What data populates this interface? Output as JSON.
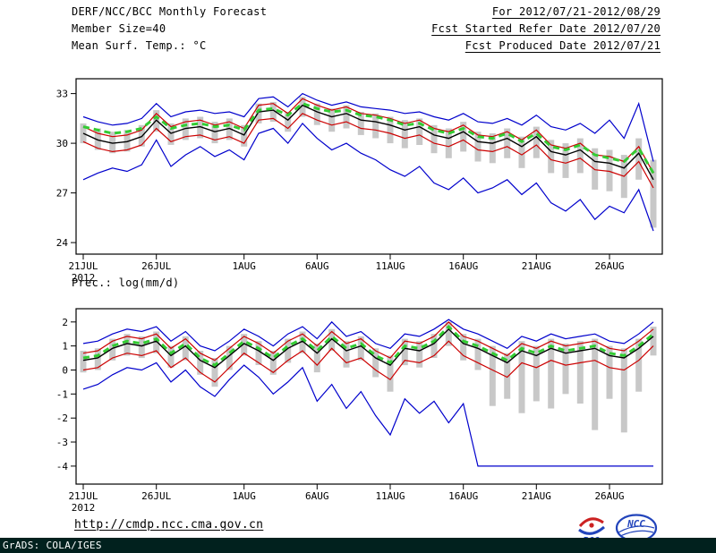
{
  "header": {
    "title": "DERF/NCC/BCC Monthly Forecast",
    "member_size": "Member Size=40",
    "for_range": "For 2012/07/21-2012/08/29",
    "refer_date": "Fcst Started Refer Date 2012/07/20",
    "produced_date": "Fcst Produced Date 2012/07/21"
  },
  "footer": {
    "url": "http://cmdp.ncc.cma.gov.cn",
    "grads_credit": "GrADS: COLA/IGES",
    "logo_bcc": "BCC",
    "logo_ncc": "NCC"
  },
  "colors": {
    "ensemble_range_line": "#0000cc",
    "quartile_line": "#cc0000",
    "mean_line": "#000000",
    "reference_dashed_line": "#33cc33",
    "spread_bar": "#c8c8c8",
    "frame": "#000000",
    "credit_bar_bg": "#01211e",
    "logo_blue": "#2244bb",
    "logo_red": "#cc2222"
  },
  "chart_data": [
    {
      "type": "line",
      "title": "Mean Surf. Temp.: °C",
      "xlabel": "",
      "ylabel": "°C",
      "ylim": [
        23.3,
        33.9
      ],
      "y_ticks": [
        24,
        27,
        30,
        33
      ],
      "x_tick_days": [
        0,
        5,
        11,
        16,
        21,
        26,
        31,
        36
      ],
      "x_tick_labels": [
        "21JUL",
        "26JUL",
        "1AUG",
        "6AUG",
        "11AUG",
        "16AUG",
        "21AUG",
        "26AUG"
      ],
      "x_sub_label": "2012",
      "grid": false,
      "legend": "none",
      "bars": {
        "name": "ensemble-spread-bar",
        "color": "#c8c8c8",
        "low": [
          30.0,
          29.6,
          29.4,
          29.5,
          29.8,
          30.7,
          29.9,
          30.2,
          30.3,
          30.0,
          30.2,
          29.8,
          31.2,
          31.3,
          30.7,
          31.6,
          31.1,
          30.7,
          30.9,
          30.5,
          30.3,
          30.0,
          29.7,
          29.9,
          29.4,
          29.1,
          29.5,
          28.9,
          28.8,
          29.1,
          28.5,
          29.1,
          28.2,
          27.9,
          28.2,
          27.2,
          27.1,
          26.7,
          27.8,
          24.9
        ],
        "high": [
          31.2,
          30.9,
          30.7,
          30.8,
          31.1,
          32.0,
          31.2,
          31.5,
          31.6,
          31.3,
          31.5,
          31.1,
          32.4,
          32.5,
          31.9,
          32.8,
          32.4,
          32.1,
          32.3,
          31.9,
          31.8,
          31.6,
          31.4,
          31.5,
          31.1,
          30.9,
          31.3,
          30.7,
          30.6,
          30.9,
          30.4,
          31.0,
          30.2,
          30.0,
          30.3,
          29.7,
          29.6,
          29.3,
          30.3,
          29.0
        ]
      },
      "series": [
        {
          "name": "ensemble-max",
          "color": "#0000cc",
          "width": 1.2,
          "dash": "",
          "values": [
            31.6,
            31.3,
            31.1,
            31.2,
            31.5,
            32.4,
            31.6,
            31.9,
            32.0,
            31.8,
            31.9,
            31.6,
            32.7,
            32.8,
            32.2,
            33.0,
            32.6,
            32.3,
            32.5,
            32.2,
            32.1,
            32.0,
            31.8,
            31.9,
            31.6,
            31.4,
            31.8,
            31.3,
            31.2,
            31.5,
            31.1,
            31.7,
            31.0,
            30.8,
            31.2,
            30.6,
            31.4,
            30.3,
            32.4,
            28.9
          ]
        },
        {
          "name": "ensemble-min",
          "color": "#0000cc",
          "width": 1.2,
          "dash": "",
          "values": [
            27.8,
            28.2,
            28.5,
            28.3,
            28.7,
            30.2,
            28.6,
            29.3,
            29.8,
            29.2,
            29.6,
            29.0,
            30.6,
            30.9,
            30.0,
            31.2,
            30.3,
            29.6,
            30.0,
            29.4,
            29.0,
            28.4,
            28.0,
            28.6,
            27.6,
            27.2,
            27.9,
            27.0,
            27.3,
            27.8,
            26.9,
            27.6,
            26.4,
            25.9,
            26.6,
            25.4,
            26.2,
            25.8,
            27.2,
            24.7
          ]
        },
        {
          "name": "quartile-upper",
          "color": "#cc0000",
          "width": 1.2,
          "dash": "",
          "values": [
            31.0,
            30.6,
            30.4,
            30.5,
            30.8,
            31.8,
            31.0,
            31.3,
            31.4,
            31.1,
            31.3,
            30.9,
            32.3,
            32.4,
            31.8,
            32.7,
            32.3,
            32.0,
            32.2,
            31.8,
            31.7,
            31.5,
            31.2,
            31.4,
            30.9,
            30.7,
            31.1,
            30.5,
            30.4,
            30.7,
            30.2,
            30.8,
            29.9,
            29.7,
            30.0,
            29.3,
            29.2,
            28.9,
            29.8,
            28.2
          ]
        },
        {
          "name": "quartile-lower",
          "color": "#cc0000",
          "width": 1.2,
          "dash": "",
          "values": [
            30.1,
            29.7,
            29.5,
            29.6,
            29.9,
            30.9,
            30.1,
            30.4,
            30.5,
            30.2,
            30.4,
            30.0,
            31.4,
            31.5,
            30.9,
            31.8,
            31.4,
            31.1,
            31.3,
            30.9,
            30.8,
            30.6,
            30.3,
            30.5,
            30.0,
            29.8,
            30.2,
            29.6,
            29.5,
            29.8,
            29.3,
            29.9,
            29.0,
            28.8,
            29.1,
            28.4,
            28.3,
            28.0,
            28.9,
            27.3
          ]
        },
        {
          "name": "ensemble-mean",
          "color": "#000000",
          "width": 1.4,
          "dash": "",
          "values": [
            30.6,
            30.2,
            30.0,
            30.1,
            30.4,
            31.4,
            30.6,
            30.9,
            31.0,
            30.7,
            30.9,
            30.5,
            31.9,
            32.0,
            31.4,
            32.3,
            31.9,
            31.6,
            31.8,
            31.4,
            31.3,
            31.1,
            30.8,
            31.0,
            30.5,
            30.3,
            30.7,
            30.1,
            30.0,
            30.3,
            29.8,
            30.4,
            29.5,
            29.3,
            29.6,
            28.9,
            28.8,
            28.5,
            29.4,
            27.8
          ]
        },
        {
          "name": "reference-dashed",
          "color": "#33cc33",
          "width": 3,
          "dash": "7,5",
          "values": [
            31.0,
            30.8,
            30.6,
            30.7,
            30.9,
            31.6,
            30.9,
            31.1,
            31.2,
            31.0,
            31.1,
            30.8,
            32.0,
            32.1,
            31.7,
            32.4,
            32.1,
            31.9,
            32.0,
            31.7,
            31.6,
            31.4,
            31.1,
            31.2,
            30.8,
            30.6,
            30.9,
            30.4,
            30.3,
            30.6,
            30.1,
            30.6,
            29.8,
            29.6,
            29.9,
            29.3,
            29.1,
            28.9,
            29.7,
            28.2
          ]
        }
      ]
    },
    {
      "type": "line",
      "title": "Prec.: log(mm/d)",
      "xlabel": "",
      "ylabel": "log(mm/d)",
      "ylim": [
        -4.75,
        2.55
      ],
      "y_ticks": [
        -4,
        -3,
        -2,
        -1,
        0,
        1,
        2
      ],
      "x_tick_days": [
        0,
        5,
        11,
        16,
        21,
        26,
        31,
        36
      ],
      "x_tick_labels": [
        "21JUL",
        "26JUL",
        "1AUG",
        "6AUG",
        "11AUG",
        "16AUG",
        "21AUG",
        "26AUG"
      ],
      "x_sub_label": "2012",
      "grid": false,
      "legend": "none",
      "bars": {
        "name": "ensemble-spread-bar",
        "color": "#c8c8c8",
        "low": [
          -0.1,
          0.0,
          0.4,
          0.6,
          0.5,
          0.7,
          0.1,
          0.4,
          -0.2,
          -0.7,
          0.0,
          0.6,
          0.2,
          -0.2,
          0.3,
          0.7,
          -0.1,
          0.8,
          0.1,
          0.4,
          -0.3,
          -0.9,
          0.2,
          0.1,
          0.5,
          1.0,
          0.4,
          0.0,
          -1.5,
          -1.2,
          -1.8,
          -1.3,
          -1.6,
          -1.0,
          -1.4,
          -2.5,
          -1.2,
          -2.6,
          -0.9,
          0.6
        ],
        "high": [
          0.8,
          0.9,
          1.3,
          1.5,
          1.4,
          1.6,
          1.0,
          1.4,
          0.8,
          0.5,
          1.0,
          1.5,
          1.2,
          0.8,
          1.3,
          1.6,
          1.1,
          1.7,
          1.2,
          1.4,
          0.9,
          0.6,
          1.3,
          1.2,
          1.5,
          2.0,
          1.5,
          1.3,
          1.0,
          0.7,
          1.2,
          1.0,
          1.3,
          1.1,
          1.2,
          1.3,
          1.0,
          0.9,
          1.3,
          1.8
        ]
      },
      "series": [
        {
          "name": "ensemble-max",
          "color": "#0000cc",
          "width": 1.2,
          "dash": "",
          "values": [
            1.1,
            1.2,
            1.5,
            1.7,
            1.6,
            1.8,
            1.2,
            1.6,
            1.0,
            0.8,
            1.2,
            1.7,
            1.4,
            1.0,
            1.5,
            1.8,
            1.3,
            2.0,
            1.4,
            1.6,
            1.1,
            0.9,
            1.5,
            1.4,
            1.7,
            2.1,
            1.7,
            1.5,
            1.2,
            0.9,
            1.4,
            1.2,
            1.5,
            1.3,
            1.4,
            1.5,
            1.2,
            1.1,
            1.5,
            2.0
          ]
        },
        {
          "name": "ensemble-min",
          "color": "#0000cc",
          "width": 1.2,
          "dash": "",
          "values": [
            -0.8,
            -0.6,
            -0.2,
            0.1,
            0.0,
            0.3,
            -0.5,
            0.0,
            -0.7,
            -1.1,
            -0.4,
            0.2,
            -0.3,
            -1.0,
            -0.5,
            0.1,
            -1.3,
            -0.6,
            -1.6,
            -0.9,
            -1.9,
            -2.7,
            -1.2,
            -1.8,
            -1.3,
            -2.2,
            -1.4,
            -4.0,
            -4.0,
            -4.0,
            -4.0,
            -4.0,
            -4.0,
            -4.0,
            -4.0,
            -4.0,
            -4.0,
            -4.0,
            -4.0,
            -4.0
          ]
        },
        {
          "name": "quartile-upper",
          "color": "#cc0000",
          "width": 1.2,
          "dash": "",
          "values": [
            0.7,
            0.8,
            1.2,
            1.4,
            1.3,
            1.5,
            0.9,
            1.3,
            0.7,
            0.4,
            0.9,
            1.4,
            1.1,
            0.7,
            1.2,
            1.5,
            1.0,
            1.6,
            1.1,
            1.3,
            0.8,
            0.5,
            1.2,
            1.1,
            1.4,
            2.0,
            1.4,
            1.2,
            0.9,
            0.6,
            1.1,
            0.9,
            1.2,
            1.0,
            1.1,
            1.2,
            0.9,
            0.8,
            1.2,
            1.7
          ]
        },
        {
          "name": "quartile-lower",
          "color": "#cc0000",
          "width": 1.2,
          "dash": "",
          "values": [
            0.0,
            0.1,
            0.5,
            0.7,
            0.6,
            0.8,
            0.1,
            0.5,
            -0.1,
            -0.5,
            0.1,
            0.7,
            0.3,
            -0.1,
            0.4,
            0.8,
            0.2,
            0.9,
            0.3,
            0.5,
            0.0,
            -0.4,
            0.4,
            0.3,
            0.6,
            1.2,
            0.6,
            0.3,
            0.0,
            -0.3,
            0.3,
            0.1,
            0.4,
            0.2,
            0.3,
            0.4,
            0.1,
            0.0,
            0.4,
            1.0
          ]
        },
        {
          "name": "ensemble-mean",
          "color": "#000000",
          "width": 1.4,
          "dash": "",
          "values": [
            0.4,
            0.5,
            0.9,
            1.1,
            1.0,
            1.2,
            0.6,
            1.0,
            0.4,
            0.1,
            0.6,
            1.1,
            0.8,
            0.4,
            0.9,
            1.2,
            0.7,
            1.3,
            0.8,
            1.0,
            0.5,
            0.2,
            0.9,
            0.8,
            1.1,
            1.7,
            1.1,
            0.9,
            0.6,
            0.3,
            0.8,
            0.6,
            0.9,
            0.7,
            0.8,
            0.9,
            0.6,
            0.5,
            0.9,
            1.4
          ]
        },
        {
          "name": "reference-dashed",
          "color": "#33cc33",
          "width": 3,
          "dash": "7,5",
          "values": [
            0.5,
            0.6,
            1.0,
            1.2,
            1.1,
            1.3,
            0.7,
            1.1,
            0.5,
            0.2,
            0.7,
            1.2,
            0.9,
            0.5,
            1.0,
            1.3,
            0.8,
            1.4,
            0.9,
            1.1,
            0.6,
            0.3,
            1.0,
            0.9,
            1.2,
            1.8,
            1.2,
            1.0,
            0.7,
            0.4,
            0.9,
            0.7,
            1.0,
            0.8,
            0.9,
            1.0,
            0.7,
            0.6,
            1.0,
            1.5
          ]
        }
      ]
    }
  ]
}
